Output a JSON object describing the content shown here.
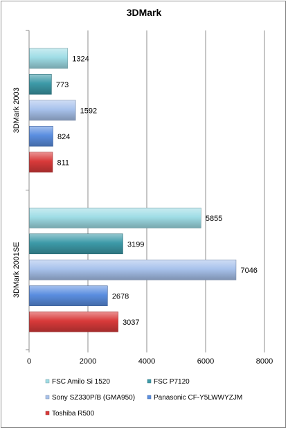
{
  "chart_data": {
    "type": "bar",
    "orientation": "horizontal",
    "title": "3DMark",
    "categories": [
      "3DMark 2003",
      "3DMark 2001SE"
    ],
    "series": [
      {
        "name": "FSC Amilo Si 1520",
        "values": [
          1324,
          5855
        ],
        "color": "#9fdde6"
      },
      {
        "name": "FSC P7120",
        "values": [
          773,
          3199
        ],
        "color": "#3d9aa8"
      },
      {
        "name": "Sony SZ330P/B (GMA950)",
        "values": [
          1592,
          7046
        ],
        "color": "#a8c2ec"
      },
      {
        "name": "Panasonic CF-Y5LWWYZJM",
        "values": [
          824,
          2678
        ],
        "color": "#5b8ee0"
      },
      {
        "name": "Toshiba R500",
        "values": [
          811,
          3037
        ],
        "color": "#d93a3a"
      }
    ],
    "xlim": [
      0,
      8000
    ],
    "xticks": [
      0,
      2000,
      4000,
      6000,
      8000
    ],
    "grid": true,
    "legend_position": "bottom"
  }
}
